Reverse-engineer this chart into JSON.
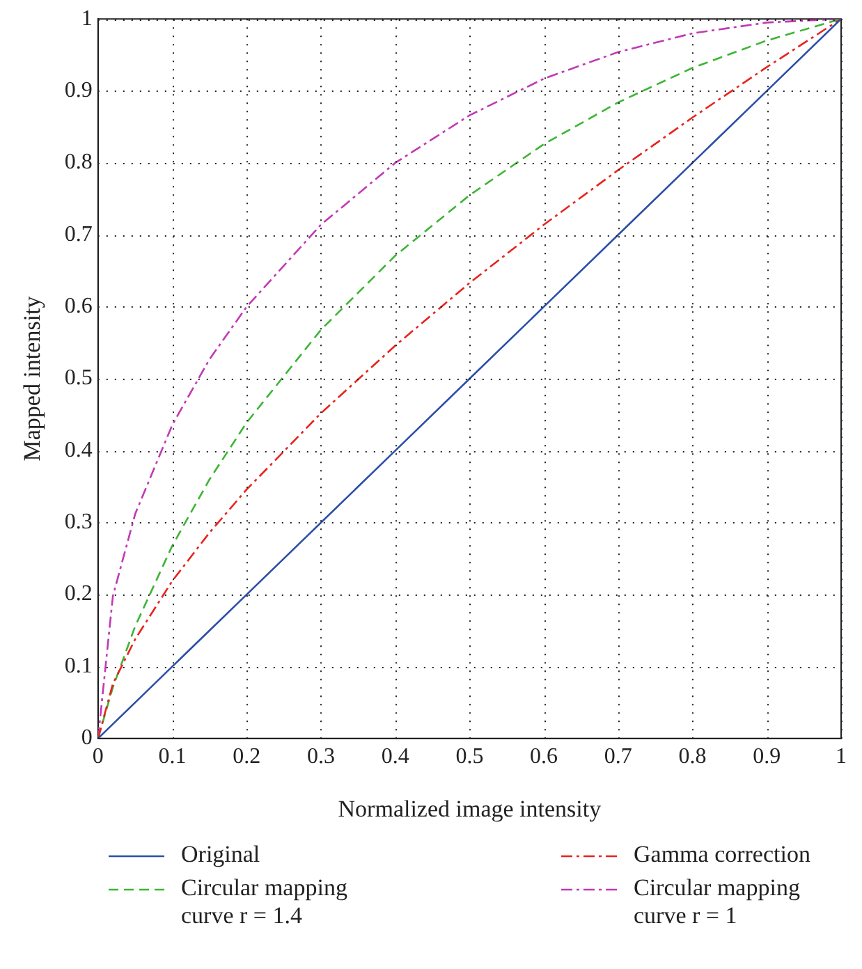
{
  "chart_data": {
    "type": "line",
    "xlabel": "Normalized image intensity",
    "ylabel": "Mapped intensity",
    "x": [
      0,
      0.02,
      0.05,
      0.1,
      0.15,
      0.2,
      0.3,
      0.4,
      0.5,
      0.6,
      0.7,
      0.8,
      0.9,
      1
    ],
    "series": [
      {
        "name": "Original",
        "color": "#2b4fa8",
        "line_style": "solid",
        "values": [
          0,
          0.02,
          0.05,
          0.1,
          0.15,
          0.2,
          0.3,
          0.4,
          0.5,
          0.6,
          0.7,
          0.8,
          0.9,
          1
        ]
      },
      {
        "name": "Gamma correction",
        "color": "#e8231d",
        "line_style": "dashdot",
        "values": [
          0,
          0.076,
          0.138,
          0.219,
          0.286,
          0.346,
          0.452,
          0.546,
          0.633,
          0.714,
          0.79,
          0.863,
          0.933,
          1
        ]
      },
      {
        "name": "Circular mapping curve r = 1.4",
        "color": "#3db534",
        "line_style": "dashed",
        "values": [
          0,
          0.071,
          0.156,
          0.268,
          0.36,
          0.439,
          0.568,
          0.671,
          0.755,
          0.826,
          0.884,
          0.932,
          0.97,
          1
        ]
      },
      {
        "name": "Circular mapping curve r = 1",
        "color": "#c13ab4",
        "line_style": "dashdot",
        "values": [
          0,
          0.198,
          0.312,
          0.436,
          0.527,
          0.6,
          0.714,
          0.8,
          0.866,
          0.917,
          0.954,
          0.98,
          0.995,
          1
        ]
      }
    ],
    "xlim": [
      0,
      1
    ],
    "xticks": [
      0,
      0.1,
      0.2,
      0.3,
      0.4,
      0.5,
      0.6,
      0.7,
      0.8,
      0.9,
      1
    ],
    "ylim": [
      0,
      1
    ],
    "yticks": [
      0,
      0.1,
      0.2,
      0.3,
      0.4,
      0.5,
      0.6,
      0.7,
      0.8,
      0.9,
      1
    ],
    "grid": true,
    "legend": "bottom",
    "marker": "none"
  }
}
